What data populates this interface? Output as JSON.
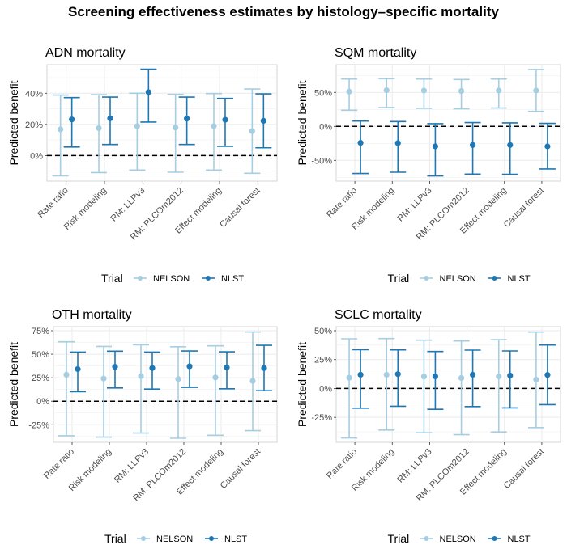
{
  "chart_data": {
    "title": "Screening effectiveness estimates by histology–specific mortality",
    "colors": {
      "NELSON": "#a6cee3",
      "NLST": "#1f78b4"
    },
    "legend": {
      "title": "Trial",
      "entries": [
        "NELSON",
        "NLST"
      ],
      "placement": "bottom"
    },
    "panels": [
      {
        "type": "scatter",
        "title": "ADN mortality",
        "ylabel": "Predicted benefit",
        "ylim": [
          -16.4,
          58.3
        ],
        "yticks": [
          0,
          20,
          40
        ],
        "ytick_labels": [
          "0%",
          "20%",
          "40%"
        ],
        "reference_line": 0,
        "grid": true,
        "categories": [
          "Rate ratio",
          "Risk modeling",
          "RM: LLPv3",
          "RM: PLCOm2012",
          "Effect modeling",
          "Causal forest"
        ],
        "series": [
          {
            "name": "NELSON",
            "values": [
              16.8,
              17.6,
              18.9,
              18.0,
              18.9,
              15.7
            ],
            "lower": [
              -13.0,
              -10.9,
              -9.3,
              -10.7,
              -9.3,
              -11.4
            ],
            "upper": [
              38.8,
              39.1,
              40.0,
              39.3,
              39.8,
              42.7
            ]
          },
          {
            "name": "NLST",
            "values": [
              23.2,
              23.9,
              40.7,
              23.7,
              23.0,
              22.3
            ],
            "lower": [
              5.5,
              7.1,
              21.5,
              7.1,
              5.9,
              5.0
            ],
            "upper": [
              37.2,
              37.5,
              55.4,
              37.5,
              36.7,
              39.6
            ]
          }
        ]
      },
      {
        "type": "scatter",
        "title": "SQM mortality",
        "ylabel": "Predicted benefit",
        "ylim": [
          -80.6,
          90.8
        ],
        "yticks": [
          -50,
          0,
          50
        ],
        "ytick_labels": [
          "-50%",
          "0%",
          "50%"
        ],
        "reference_line": 0,
        "grid": true,
        "categories": [
          "Rate ratio",
          "Risk modeling",
          "RM: LLPv3",
          "RM: PLCOm2012",
          "Effect modeling",
          "Causal forest"
        ],
        "series": [
          {
            "name": "NELSON",
            "values": [
              51.2,
              53.2,
              52.8,
              52.0,
              52.8,
              52.8
            ],
            "lower": [
              23.8,
              27.8,
              26.6,
              25.8,
              27.0,
              22.2
            ],
            "upper": [
              69.8,
              70.2,
              69.8,
              69.0,
              69.8,
              83.7
            ]
          },
          {
            "name": "NLST",
            "values": [
              -24.2,
              -24.6,
              -29.4,
              -27.4,
              -27.4,
              -29.4
            ],
            "lower": [
              -69.4,
              -67.5,
              -73.0,
              -70.2,
              -70.6,
              -62.7
            ],
            "upper": [
              7.9,
              7.1,
              4.0,
              5.6,
              5.2,
              4.4
            ]
          }
        ]
      },
      {
        "type": "scatter",
        "title": "OTH mortality",
        "ylabel": "Predicted benefit",
        "ylim": [
          -43.7,
          79.3
        ],
        "yticks": [
          -25,
          0,
          25,
          50,
          75
        ],
        "ytick_labels": [
          "-25%",
          "0%",
          "25%",
          "50%",
          "75%"
        ],
        "reference_line": 0,
        "grid": true,
        "categories": [
          "Rate ratio",
          "Risk modeling",
          "RM: LLPv3",
          "RM: PLCOm2012",
          "Effect modeling",
          "Causal forest"
        ],
        "series": [
          {
            "name": "NELSON",
            "values": [
              28.2,
              24.1,
              26.7,
              23.6,
              25.3,
              21.6
            ],
            "lower": [
              -36.8,
              -38.2,
              -33.9,
              -39.4,
              -36.2,
              -31.3
            ],
            "upper": [
              63.2,
              58.3,
              60.0,
              58.0,
              58.9,
              73.6
            ]
          },
          {
            "name": "NLST",
            "values": [
              34.2,
              36.5,
              35.3,
              37.1,
              35.9,
              35.3
            ],
            "lower": [
              10.1,
              14.1,
              12.9,
              14.7,
              13.2,
              11.2
            ],
            "upper": [
              52.3,
              53.2,
              52.3,
              53.4,
              52.6,
              59.5
            ]
          }
        ]
      },
      {
        "type": "scatter",
        "title": "SCLC mortality",
        "ylabel": "Predicted benefit",
        "ylim": [
          -46.6,
          53.5
        ],
        "yticks": [
          -25,
          0,
          25,
          50
        ],
        "ytick_labels": [
          "-25%",
          "0%",
          "25%",
          "50%"
        ],
        "reference_line": 0,
        "grid": true,
        "categories": [
          "Rate ratio",
          "Risk modeling",
          "RM: LLPv3",
          "RM: PLCOm2012",
          "Effect modeling",
          "Causal forest"
        ],
        "series": [
          {
            "name": "NELSON",
            "values": [
              9.3,
              11.9,
              10.3,
              9.1,
              10.5,
              7.7
            ],
            "lower": [
              -42.8,
              -36.0,
              -38.3,
              -40.0,
              -37.6,
              -33.9
            ],
            "upper": [
              43.0,
              43.2,
              41.8,
              41.1,
              42.3,
              48.8
            ]
          },
          {
            "name": "NLST",
            "values": [
              11.9,
              12.4,
              10.5,
              11.9,
              11.2,
              11.7
            ],
            "lower": [
              -17.1,
              -15.4,
              -18.0,
              -15.7,
              -16.8,
              -14.0
            ],
            "upper": [
              33.6,
              33.4,
              32.0,
              33.2,
              32.5,
              37.6
            ]
          }
        ]
      }
    ]
  }
}
